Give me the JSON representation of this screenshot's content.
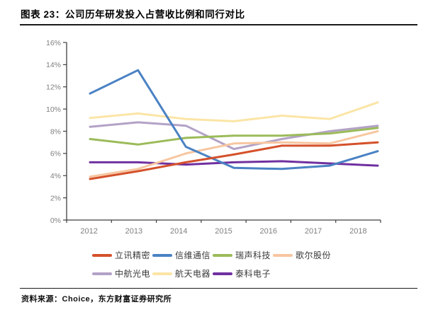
{
  "title": "图表 23：公司历年研发投入占营收比例和同行对比",
  "source": "资料来源：Choice，东方财富证券研究所",
  "axis_text_color": "#7f7f7f",
  "axis_line_color": "#3f3f3f",
  "chart_data": {
    "type": "line",
    "categories": [
      "2012",
      "2013",
      "2014",
      "2015",
      "2016",
      "2017",
      "2018"
    ],
    "series": [
      {
        "name": "立讯精密",
        "color": "#d4512b",
        "values": [
          3.7,
          4.4,
          5.2,
          5.9,
          6.7,
          6.7,
          7.0
        ]
      },
      {
        "name": "信维通信",
        "color": "#4a82c4",
        "values": [
          11.4,
          13.5,
          6.6,
          4.7,
          4.6,
          4.9,
          6.2
        ]
      },
      {
        "name": "瑞声科技",
        "color": "#9bbb59",
        "values": [
          7.3,
          6.8,
          7.4,
          7.6,
          7.6,
          7.8,
          8.3
        ]
      },
      {
        "name": "歌尔股份",
        "color": "#f7c6a0",
        "values": [
          3.9,
          4.6,
          6.0,
          6.9,
          7.0,
          6.9,
          8.0
        ]
      },
      {
        "name": "中航光电",
        "color": "#b3a2c7",
        "values": [
          8.4,
          8.8,
          8.5,
          6.4,
          7.3,
          8.0,
          8.5
        ]
      },
      {
        "name": "航天电器",
        "color": "#fbe5a6",
        "values": [
          9.2,
          9.6,
          9.1,
          8.9,
          9.4,
          9.1,
          10.6
        ]
      },
      {
        "name": "泰科电子",
        "color": "#7030a0",
        "values": [
          5.2,
          5.2,
          5.0,
          5.2,
          5.3,
          5.1,
          4.9
        ]
      }
    ],
    "title": "公司历年研发投入占营收比例和同行对比",
    "xlabel": "",
    "ylabel": "",
    "ylim": [
      0,
      16
    ],
    "ytick_step": 2,
    "ytick_suffix": "%",
    "grid": false,
    "legend_position": "bottom",
    "legend_rows": [
      4,
      3
    ]
  }
}
